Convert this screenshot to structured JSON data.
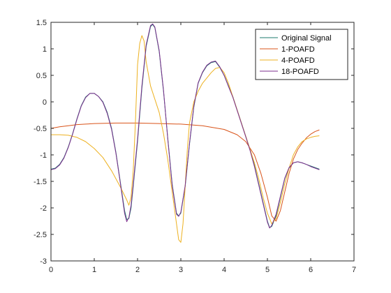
{
  "chart_data": {
    "type": "line",
    "title": "",
    "xlabel": "",
    "ylabel": "",
    "xlim": [
      0,
      7
    ],
    "ylim": [
      -3,
      1.5
    ],
    "xticks": [
      0,
      1,
      2,
      3,
      4,
      5,
      6,
      7
    ],
    "yticks": [
      -3,
      -2.5,
      -2,
      -1.5,
      -1,
      -0.5,
      0,
      0.5,
      1,
      1.5
    ],
    "grid": false,
    "box": true,
    "legend_position": "top-right",
    "series": [
      {
        "name": "Original Signal",
        "color": "#1b7a6e",
        "points": [
          [
            0,
            -1.27
          ],
          [
            0.1,
            -1.25
          ],
          [
            0.2,
            -1.18
          ],
          [
            0.3,
            -1.05
          ],
          [
            0.4,
            -0.85
          ],
          [
            0.5,
            -0.6
          ],
          [
            0.6,
            -0.32
          ],
          [
            0.7,
            -0.07
          ],
          [
            0.8,
            0.09
          ],
          [
            0.9,
            0.16
          ],
          [
            1.0,
            0.16
          ],
          [
            1.1,
            0.1
          ],
          [
            1.2,
            0.0
          ],
          [
            1.3,
            -0.2
          ],
          [
            1.4,
            -0.5
          ],
          [
            1.5,
            -0.95
          ],
          [
            1.6,
            -1.5
          ],
          [
            1.7,
            -2.05
          ],
          [
            1.75,
            -2.22
          ],
          [
            1.8,
            -2.2
          ],
          [
            1.85,
            -2.0
          ],
          [
            1.9,
            -1.6
          ],
          [
            2.0,
            -0.75
          ],
          [
            2.1,
            0.25
          ],
          [
            2.2,
            1.05
          ],
          [
            2.3,
            1.42
          ],
          [
            2.35,
            1.46
          ],
          [
            2.4,
            1.4
          ],
          [
            2.5,
            0.95
          ],
          [
            2.6,
            0.2
          ],
          [
            2.7,
            -0.7
          ],
          [
            2.8,
            -1.55
          ],
          [
            2.9,
            -2.1
          ],
          [
            2.95,
            -2.15
          ],
          [
            3.0,
            -2.1
          ],
          [
            3.1,
            -1.6
          ],
          [
            3.2,
            -0.8
          ],
          [
            3.3,
            -0.1
          ],
          [
            3.4,
            0.35
          ],
          [
            3.5,
            0.55
          ],
          [
            3.6,
            0.68
          ],
          [
            3.7,
            0.74
          ],
          [
            3.8,
            0.76
          ],
          [
            3.9,
            0.65
          ],
          [
            4.0,
            0.5
          ],
          [
            4.1,
            0.3
          ],
          [
            4.2,
            0.1
          ],
          [
            4.3,
            -0.15
          ],
          [
            4.4,
            -0.4
          ],
          [
            4.5,
            -0.65
          ],
          [
            4.6,
            -0.9
          ],
          [
            4.7,
            -1.2
          ],
          [
            4.8,
            -1.55
          ],
          [
            4.9,
            -1.9
          ],
          [
            5.0,
            -2.25
          ],
          [
            5.05,
            -2.37
          ],
          [
            5.1,
            -2.35
          ],
          [
            5.2,
            -2.15
          ],
          [
            5.3,
            -1.8
          ],
          [
            5.4,
            -1.45
          ],
          [
            5.5,
            -1.25
          ],
          [
            5.6,
            -1.15
          ],
          [
            5.7,
            -1.13
          ],
          [
            5.8,
            -1.15
          ],
          [
            5.9,
            -1.18
          ],
          [
            6.0,
            -1.21
          ],
          [
            6.1,
            -1.24
          ],
          [
            6.2,
            -1.27
          ]
        ]
      },
      {
        "name": "1-POAFD",
        "color": "#d95319",
        "points": [
          [
            0,
            -0.5
          ],
          [
            0.2,
            -0.47
          ],
          [
            0.4,
            -0.45
          ],
          [
            0.6,
            -0.43
          ],
          [
            0.8,
            -0.42
          ],
          [
            1.0,
            -0.41
          ],
          [
            1.5,
            -0.4
          ],
          [
            2.0,
            -0.4
          ],
          [
            2.5,
            -0.41
          ],
          [
            3.0,
            -0.42
          ],
          [
            3.5,
            -0.45
          ],
          [
            4.0,
            -0.52
          ],
          [
            4.3,
            -0.62
          ],
          [
            4.5,
            -0.75
          ],
          [
            4.7,
            -1.0
          ],
          [
            4.85,
            -1.35
          ],
          [
            5.0,
            -1.8
          ],
          [
            5.1,
            -2.15
          ],
          [
            5.2,
            -2.25
          ],
          [
            5.3,
            -2.05
          ],
          [
            5.4,
            -1.7
          ],
          [
            5.5,
            -1.35
          ],
          [
            5.6,
            -1.08
          ],
          [
            5.7,
            -0.9
          ],
          [
            5.8,
            -0.78
          ],
          [
            5.9,
            -0.68
          ],
          [
            6.0,
            -0.61
          ],
          [
            6.1,
            -0.56
          ],
          [
            6.2,
            -0.53
          ]
        ]
      },
      {
        "name": "4-POAFD",
        "color": "#edb120",
        "points": [
          [
            0,
            -0.62
          ],
          [
            0.2,
            -0.62
          ],
          [
            0.4,
            -0.63
          ],
          [
            0.6,
            -0.67
          ],
          [
            0.8,
            -0.75
          ],
          [
            1.0,
            -0.88
          ],
          [
            1.2,
            -1.05
          ],
          [
            1.4,
            -1.3
          ],
          [
            1.6,
            -1.6
          ],
          [
            1.75,
            -1.85
          ],
          [
            1.8,
            -1.95
          ],
          [
            1.85,
            -1.8
          ],
          [
            1.9,
            -1.3
          ],
          [
            1.95,
            -0.4
          ],
          [
            2.0,
            0.7
          ],
          [
            2.05,
            1.1
          ],
          [
            2.1,
            1.25
          ],
          [
            2.15,
            1.15
          ],
          [
            2.2,
            0.75
          ],
          [
            2.3,
            0.3
          ],
          [
            2.4,
            0.05
          ],
          [
            2.5,
            -0.2
          ],
          [
            2.6,
            -0.6
          ],
          [
            2.7,
            -1.1
          ],
          [
            2.8,
            -1.7
          ],
          [
            2.9,
            -2.3
          ],
          [
            2.95,
            -2.6
          ],
          [
            3.0,
            -2.65
          ],
          [
            3.05,
            -2.3
          ],
          [
            3.1,
            -1.6
          ],
          [
            3.15,
            -0.9
          ],
          [
            3.2,
            -0.4
          ],
          [
            3.3,
            0.0
          ],
          [
            3.4,
            0.2
          ],
          [
            3.5,
            0.35
          ],
          [
            3.6,
            0.45
          ],
          [
            3.7,
            0.55
          ],
          [
            3.8,
            0.63
          ],
          [
            3.9,
            0.65
          ],
          [
            4.0,
            0.55
          ],
          [
            4.1,
            0.35
          ],
          [
            4.2,
            0.1
          ],
          [
            4.3,
            -0.15
          ],
          [
            4.4,
            -0.4
          ],
          [
            4.5,
            -0.65
          ],
          [
            4.6,
            -0.9
          ],
          [
            4.7,
            -1.15
          ],
          [
            4.8,
            -1.45
          ],
          [
            4.9,
            -1.8
          ],
          [
            5.0,
            -2.1
          ],
          [
            5.1,
            -2.3
          ],
          [
            5.2,
            -2.2
          ],
          [
            5.3,
            -1.9
          ],
          [
            5.4,
            -1.55
          ],
          [
            5.5,
            -1.25
          ],
          [
            5.6,
            -1.0
          ],
          [
            5.7,
            -0.85
          ],
          [
            5.8,
            -0.75
          ],
          [
            5.9,
            -0.7
          ],
          [
            6.0,
            -0.67
          ],
          [
            6.1,
            -0.65
          ],
          [
            6.2,
            -0.64
          ]
        ]
      },
      {
        "name": "18-POAFD",
        "color": "#7e2f8e",
        "points": [
          [
            0,
            -1.28
          ],
          [
            0.1,
            -1.26
          ],
          [
            0.2,
            -1.19
          ],
          [
            0.3,
            -1.06
          ],
          [
            0.4,
            -0.86
          ],
          [
            0.5,
            -0.61
          ],
          [
            0.6,
            -0.33
          ],
          [
            0.7,
            -0.08
          ],
          [
            0.8,
            0.08
          ],
          [
            0.9,
            0.16
          ],
          [
            1.0,
            0.16
          ],
          [
            1.1,
            0.1
          ],
          [
            1.2,
            -0.01
          ],
          [
            1.3,
            -0.22
          ],
          [
            1.4,
            -0.52
          ],
          [
            1.5,
            -0.97
          ],
          [
            1.6,
            -1.52
          ],
          [
            1.7,
            -2.1
          ],
          [
            1.75,
            -2.26
          ],
          [
            1.8,
            -2.18
          ],
          [
            1.85,
            -1.95
          ],
          [
            1.9,
            -1.55
          ],
          [
            2.0,
            -0.7
          ],
          [
            2.1,
            0.3
          ],
          [
            2.2,
            1.08
          ],
          [
            2.3,
            1.44
          ],
          [
            2.35,
            1.47
          ],
          [
            2.4,
            1.41
          ],
          [
            2.5,
            0.97
          ],
          [
            2.6,
            0.22
          ],
          [
            2.7,
            -0.72
          ],
          [
            2.8,
            -1.58
          ],
          [
            2.9,
            -2.12
          ],
          [
            2.95,
            -2.16
          ],
          [
            3.0,
            -2.08
          ],
          [
            3.1,
            -1.58
          ],
          [
            3.2,
            -0.78
          ],
          [
            3.3,
            -0.08
          ],
          [
            3.4,
            0.36
          ],
          [
            3.5,
            0.56
          ],
          [
            3.6,
            0.69
          ],
          [
            3.7,
            0.75
          ],
          [
            3.8,
            0.77
          ],
          [
            3.9,
            0.66
          ],
          [
            4.0,
            0.5
          ],
          [
            4.1,
            0.29
          ],
          [
            4.2,
            0.09
          ],
          [
            4.3,
            -0.16
          ],
          [
            4.4,
            -0.41
          ],
          [
            4.5,
            -0.66
          ],
          [
            4.6,
            -0.92
          ],
          [
            4.7,
            -1.22
          ],
          [
            4.8,
            -1.57
          ],
          [
            4.9,
            -1.92
          ],
          [
            5.0,
            -2.27
          ],
          [
            5.05,
            -2.38
          ],
          [
            5.1,
            -2.33
          ],
          [
            5.2,
            -2.12
          ],
          [
            5.3,
            -1.78
          ],
          [
            5.4,
            -1.44
          ],
          [
            5.5,
            -1.24
          ],
          [
            5.6,
            -1.15
          ],
          [
            5.7,
            -1.13
          ],
          [
            5.8,
            -1.15
          ],
          [
            5.9,
            -1.18
          ],
          [
            6.0,
            -1.22
          ],
          [
            6.1,
            -1.25
          ],
          [
            6.2,
            -1.28
          ]
        ]
      }
    ]
  }
}
